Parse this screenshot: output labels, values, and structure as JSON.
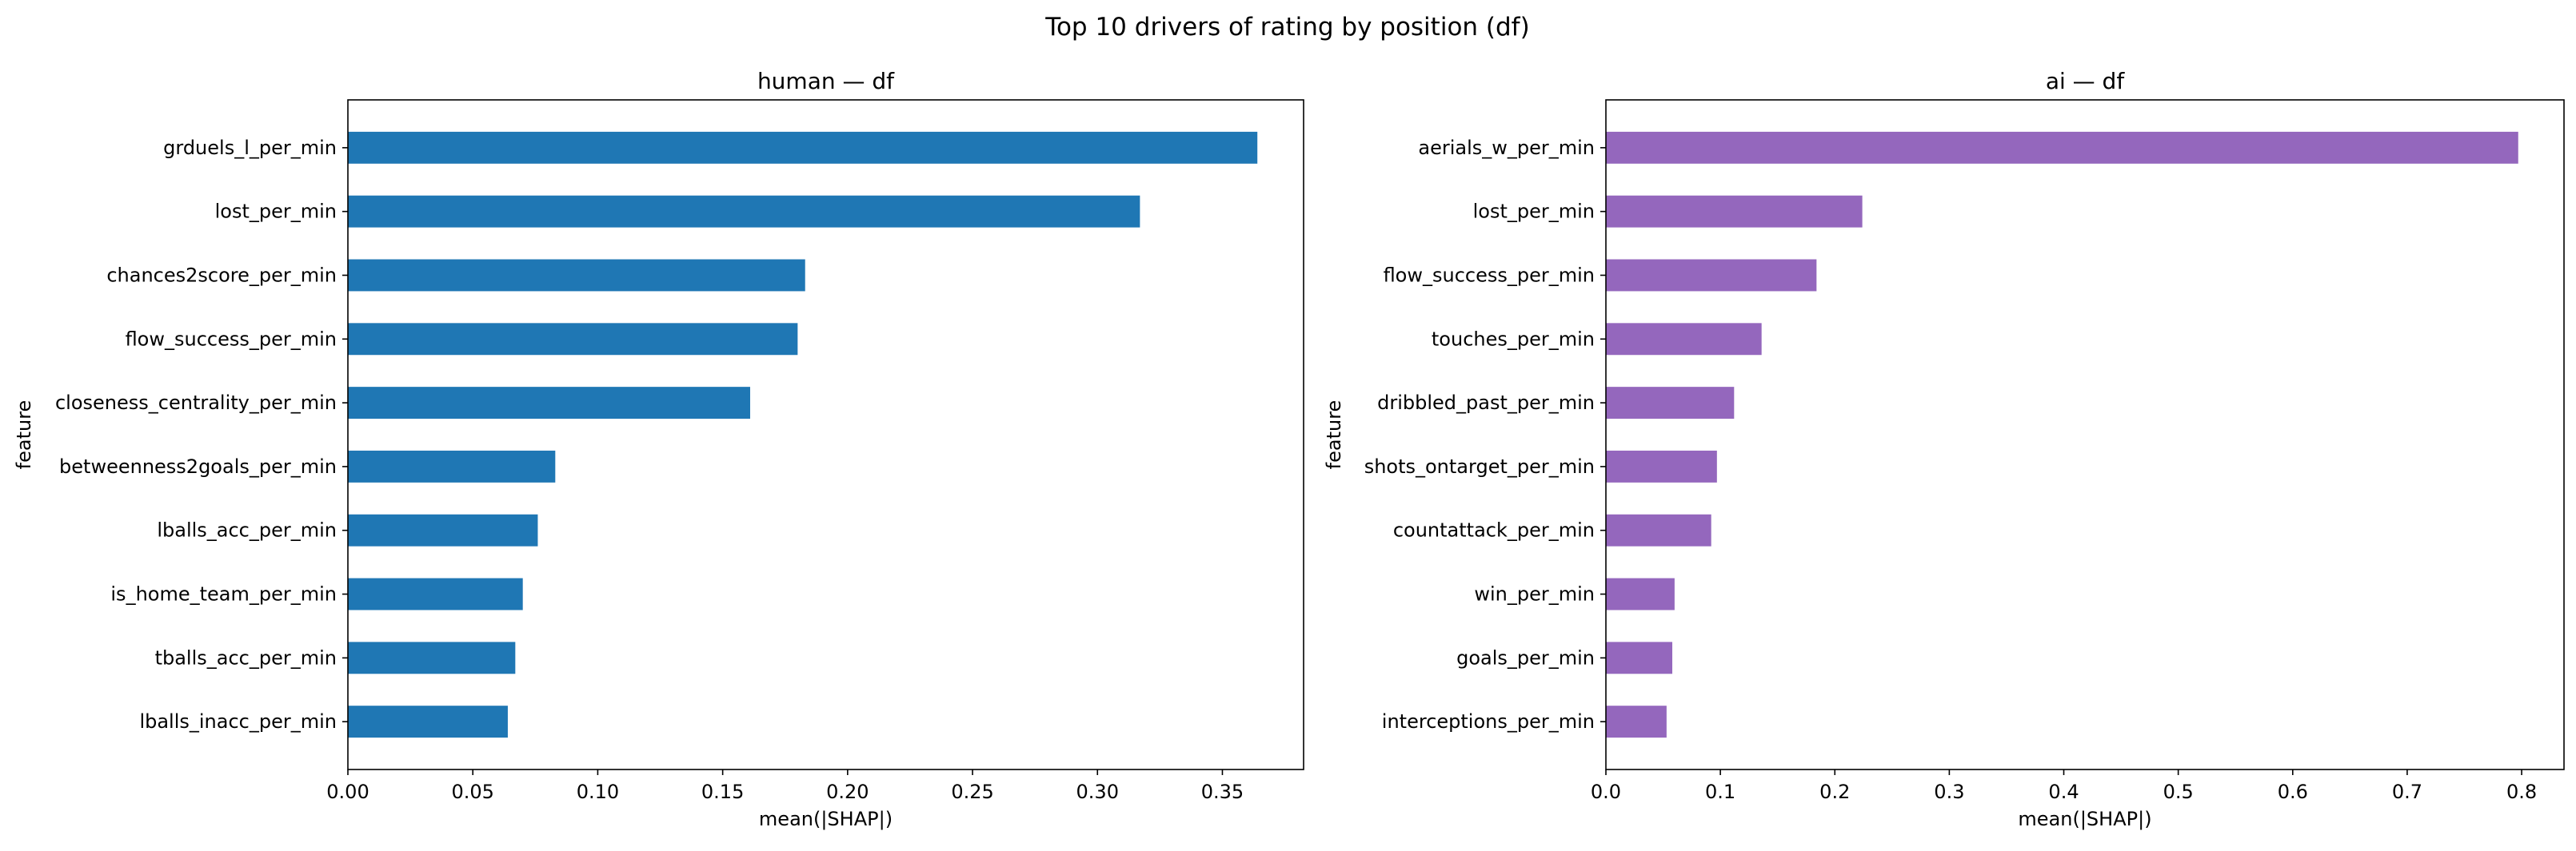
{
  "figure": {
    "suptitle": "Top 10 drivers of rating by position (df)"
  },
  "chart_data": [
    {
      "type": "bar",
      "orientation": "horizontal",
      "title": "human — df",
      "xlabel": "mean(|SHAP|)",
      "ylabel": "feature",
      "color": "#1f77b4",
      "xlim": [
        0,
        0.3825
      ],
      "xticks": [
        "0.00",
        "0.05",
        "0.10",
        "0.15",
        "0.20",
        "0.25",
        "0.30",
        "0.35"
      ],
      "categories": [
        "grduels_l_per_min",
        "lost_per_min",
        "chances2score_per_min",
        "flow_success_per_min",
        "closeness_centrality_per_min",
        "betweenness2goals_per_min",
        "lballs_acc_per_min",
        "is_home_team_per_min",
        "tballs_acc_per_min",
        "lballs_inacc_per_min"
      ],
      "values": [
        0.364,
        0.317,
        0.183,
        0.18,
        0.161,
        0.083,
        0.076,
        0.07,
        0.067,
        0.064
      ]
    },
    {
      "type": "bar",
      "orientation": "horizontal",
      "title": "ai — df",
      "xlabel": "mean(|SHAP|)",
      "ylabel": "feature",
      "color": "#9467bd",
      "xlim": [
        0,
        0.837
      ],
      "xticks": [
        "0.0",
        "0.1",
        "0.2",
        "0.3",
        "0.4",
        "0.5",
        "0.6",
        "0.7",
        "0.8"
      ],
      "categories": [
        "aerials_w_per_min",
        "lost_per_min",
        "flow_success_per_min",
        "touches_per_min",
        "dribbled_past_per_min",
        "shots_ontarget_per_min",
        "countattack_per_min",
        "win_per_min",
        "goals_per_min",
        "interceptions_per_min"
      ],
      "values": [
        0.797,
        0.224,
        0.184,
        0.136,
        0.112,
        0.097,
        0.092,
        0.06,
        0.058,
        0.053
      ]
    }
  ]
}
